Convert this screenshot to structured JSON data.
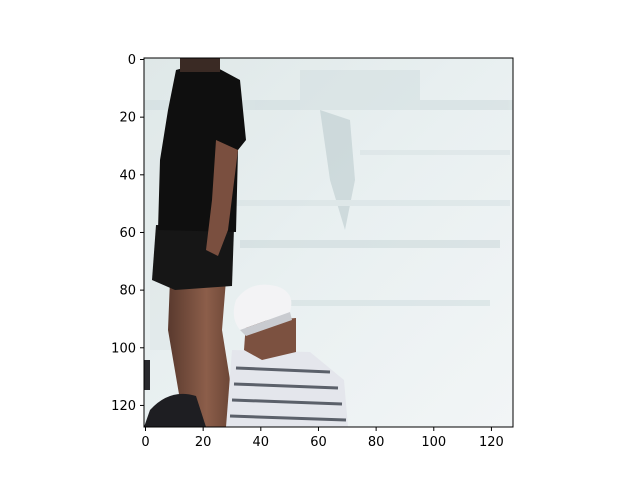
{
  "figure": {
    "type": "image_display",
    "image_description": "photo of a person in black shirt and shorts standing by a body of water, with a person in a white cap and striped shirt crouching at the lower left",
    "image_size": [
      128,
      128
    ],
    "x_axis": {
      "range": [
        0,
        128
      ],
      "ticks": [
        0,
        20,
        40,
        60,
        80,
        100,
        120
      ]
    },
    "y_axis": {
      "range": [
        0,
        128
      ],
      "inverted": true,
      "ticks": [
        0,
        20,
        40,
        60,
        80,
        100,
        120
      ]
    },
    "colors": {
      "water": "#e7eeee",
      "water_shadow": "#b8c9cc",
      "shirt_black": "#101010",
      "skin": "#8a5a48",
      "cap_white": "#f2f2f4",
      "stripe_dark": "#3a3f4a"
    }
  }
}
